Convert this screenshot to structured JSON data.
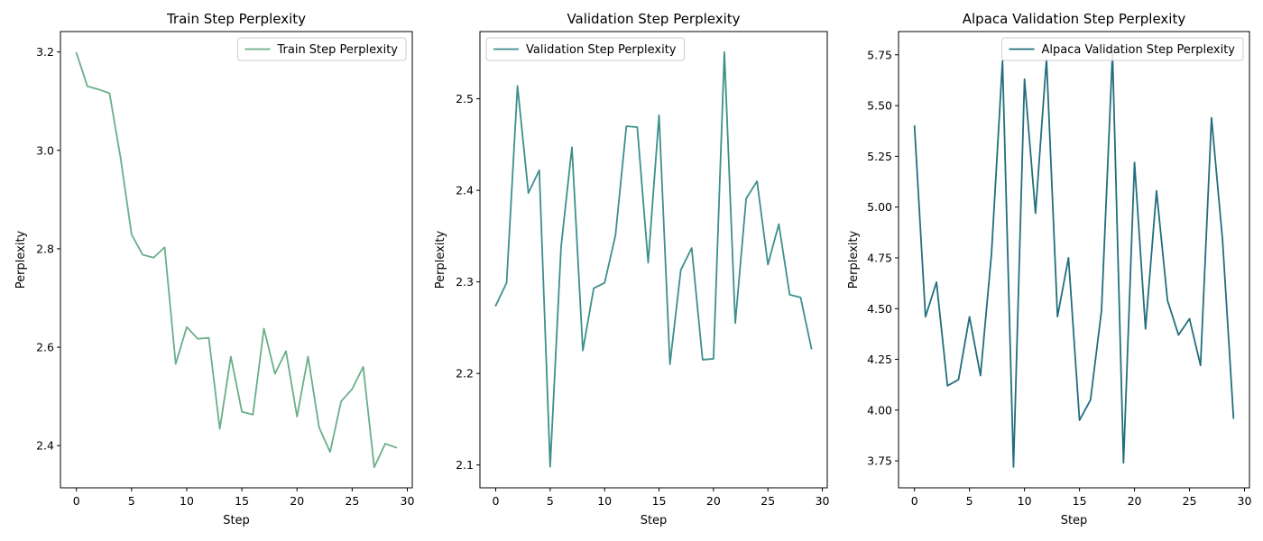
{
  "chart_data": [
    {
      "type": "line",
      "title": "Train Step Perplexity",
      "xlabel": "Step",
      "ylabel": "Perplexity",
      "xlim": [
        -1.45,
        30.45
      ],
      "ylim": [
        2.3143,
        3.2414
      ],
      "xticks": [
        0,
        5,
        10,
        15,
        20,
        25,
        30
      ],
      "xtick_labels": [
        "0",
        "5",
        "10",
        "15",
        "20",
        "25",
        "30"
      ],
      "yticks": [
        2.4,
        2.6,
        2.8,
        3.0,
        3.2
      ],
      "ytick_labels": [
        "2.4",
        "2.6",
        "2.8",
        "3.0",
        "3.2"
      ],
      "grid": false,
      "legend_position": "upper right",
      "series": [
        {
          "name": "Train Step Perplexity",
          "color": "#6aae8a",
          "x": [
            0,
            1,
            2,
            3,
            4,
            5,
            6,
            7,
            8,
            9,
            10,
            11,
            12,
            13,
            14,
            15,
            16,
            17,
            18,
            19,
            20,
            21,
            22,
            23,
            24,
            25,
            26,
            27,
            28,
            29
          ],
          "values": [
            3.198,
            3.13,
            3.124,
            3.116,
            2.985,
            2.829,
            2.788,
            2.782,
            2.803,
            2.566,
            2.641,
            2.617,
            2.619,
            2.434,
            2.581,
            2.469,
            2.463,
            2.638,
            2.546,
            2.592,
            2.459,
            2.581,
            2.437,
            2.387,
            2.49,
            2.515,
            2.56,
            2.356,
            2.404,
            2.396
          ]
        }
      ]
    },
    {
      "type": "line",
      "title": "Validation Step Perplexity",
      "xlabel": "Step",
      "ylabel": "Perplexity",
      "xlim": [
        -1.45,
        30.45
      ],
      "ylim": [
        2.0751,
        2.5734
      ],
      "xticks": [
        0,
        5,
        10,
        15,
        20,
        25,
        30
      ],
      "xtick_labels": [
        "0",
        "5",
        "10",
        "15",
        "20",
        "25",
        "30"
      ],
      "yticks": [
        2.1,
        2.2,
        2.3,
        2.4,
        2.5
      ],
      "ytick_labels": [
        "2.1",
        "2.2",
        "2.3",
        "2.4",
        "2.5"
      ],
      "grid": false,
      "legend_position": "upper left",
      "series": [
        {
          "name": "Validation Step Perplexity",
          "color": "#3d8f8c",
          "x": [
            0,
            1,
            2,
            3,
            4,
            5,
            6,
            7,
            8,
            9,
            10,
            11,
            12,
            13,
            14,
            15,
            16,
            17,
            18,
            19,
            20,
            21,
            22,
            23,
            24,
            25,
            26,
            27,
            28,
            29
          ],
          "values": [
            2.274,
            2.299,
            2.514,
            2.397,
            2.422,
            2.098,
            2.338,
            2.447,
            2.225,
            2.293,
            2.299,
            2.351,
            2.47,
            2.469,
            2.321,
            2.482,
            2.21,
            2.313,
            2.337,
            2.215,
            2.216,
            2.551,
            2.255,
            2.391,
            2.41,
            2.319,
            2.363,
            2.286,
            2.283,
            2.227
          ]
        }
      ]
    },
    {
      "type": "line",
      "title": "Alpaca Validation Step Perplexity",
      "xlabel": "Step",
      "ylabel": "Perplexity",
      "xlim": [
        -1.45,
        30.45
      ],
      "ylim": [
        3.6174,
        5.8645
      ],
      "xticks": [
        0,
        5,
        10,
        15,
        20,
        25,
        30
      ],
      "xtick_labels": [
        "0",
        "5",
        "10",
        "15",
        "20",
        "25",
        "30"
      ],
      "yticks": [
        3.75,
        4.0,
        4.25,
        4.5,
        4.75,
        5.0,
        5.25,
        5.5,
        5.75
      ],
      "ytick_labels": [
        "3.75",
        "4.00",
        "4.25",
        "4.50",
        "4.75",
        "5.00",
        "5.25",
        "5.50",
        "5.75"
      ],
      "grid": false,
      "legend_position": "upper right",
      "series": [
        {
          "name": "Alpaca Validation Step Perplexity",
          "color": "#236e7e",
          "x": [
            0,
            1,
            2,
            3,
            4,
            5,
            6,
            7,
            8,
            9,
            10,
            11,
            12,
            13,
            14,
            15,
            16,
            17,
            18,
            19,
            20,
            21,
            22,
            23,
            24,
            25,
            26,
            27,
            28,
            29
          ],
          "values": [
            5.4,
            4.46,
            4.63,
            4.12,
            4.15,
            4.46,
            4.17,
            4.77,
            5.72,
            3.72,
            5.63,
            4.97,
            5.73,
            4.46,
            4.75,
            3.95,
            4.05,
            4.49,
            5.76,
            3.74,
            5.22,
            4.4,
            5.08,
            4.54,
            4.37,
            4.45,
            4.22,
            5.44,
            4.84,
            3.96
          ]
        }
      ]
    }
  ]
}
